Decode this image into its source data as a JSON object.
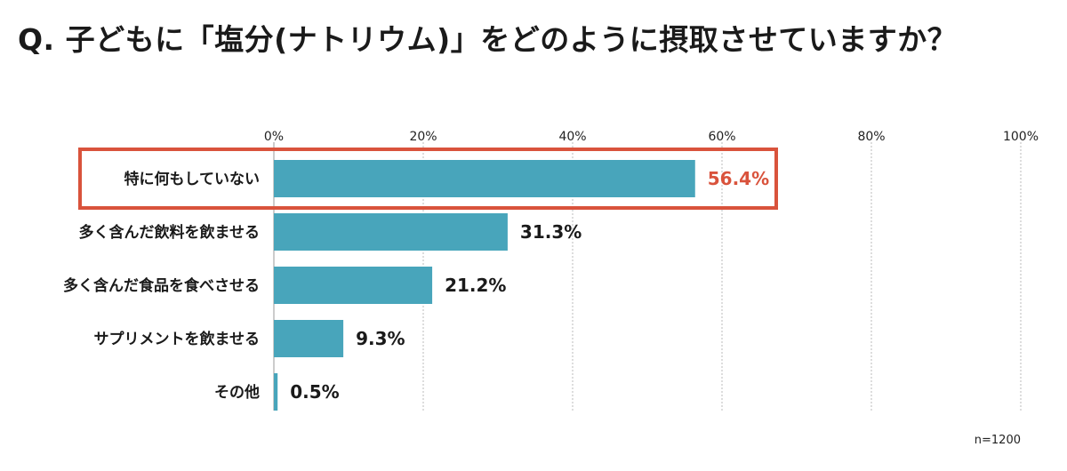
{
  "question": "Q. 子どもに「塩分(ナトリウム)」をどのように摂取させていますか？",
  "sample_size": "n=1200",
  "colors": {
    "bar": "#48a5bb",
    "highlight": "#d9533c",
    "grid": "#bbbbbb"
  },
  "chart_data": {
    "type": "bar",
    "orientation": "horizontal",
    "title": "Q. 子どもに「塩分(ナトリウム)」をどのように摂取させていますか？",
    "categories": [
      "特に何もしていない",
      "多く含んだ飲料を飲ませる",
      "多く含んだ食品を食べさせる",
      "サプリメントを飲ませる",
      "その他"
    ],
    "values": [
      56.4,
      31.3,
      21.2,
      9.3,
      0.5
    ],
    "value_labels": [
      "56.4%",
      "31.3%",
      "21.2%",
      "9.3%",
      "0.5%"
    ],
    "highlighted_index": 0,
    "xlim": [
      0,
      100
    ],
    "x_ticks": [
      0,
      20,
      40,
      60,
      80,
      100
    ],
    "x_tick_labels": [
      "0%",
      "20%",
      "40%",
      "60%",
      "80%",
      "100%"
    ],
    "x_axis_position": "top",
    "grid": true,
    "legend": "none"
  }
}
